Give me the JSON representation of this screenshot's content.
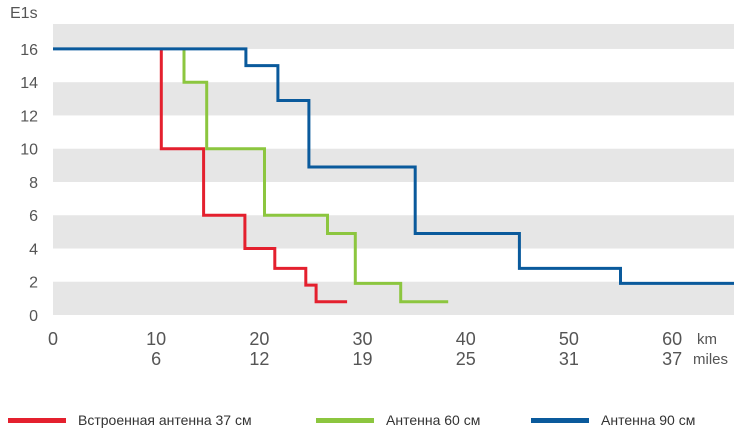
{
  "chart_data": {
    "type": "line",
    "step": true,
    "ylabel": "E1s",
    "ylim": [
      0,
      17.5
    ],
    "yticks": [
      0,
      2,
      4,
      6,
      8,
      10,
      12,
      14,
      16
    ],
    "xlim": [
      0,
      66
    ],
    "xticks": [
      {
        "km": 0,
        "km_label": "0",
        "miles_label": ""
      },
      {
        "km": 10,
        "km_label": "10",
        "miles_label": "6"
      },
      {
        "km": 20,
        "km_label": "20",
        "miles_label": "12"
      },
      {
        "km": 30,
        "km_label": "30",
        "miles_label": "19"
      },
      {
        "km": 40,
        "km_label": "40",
        "miles_label": "25"
      },
      {
        "km": 50,
        "km_label": "50",
        "miles_label": "31"
      },
      {
        "km": 60,
        "km_label": "60",
        "miles_label": "37"
      }
    ],
    "x_unit_primary": "km",
    "x_unit_secondary": "miles",
    "grid": "horizontal alternating bands",
    "legend_position": "bottom",
    "series": [
      {
        "name": "Встроенная антенна 37 см",
        "color": "#e4202e",
        "points": [
          [
            10.5,
            16
          ],
          [
            10.5,
            10
          ],
          [
            14.6,
            10
          ],
          [
            14.6,
            6
          ],
          [
            18.6,
            6
          ],
          [
            18.6,
            4
          ],
          [
            21.5,
            4
          ],
          [
            21.5,
            2.8
          ],
          [
            24.5,
            2.8
          ],
          [
            24.5,
            1.8
          ],
          [
            25.5,
            1.8
          ],
          [
            25.5,
            0.8
          ],
          [
            28.5,
            0.8
          ]
        ]
      },
      {
        "name": "Антенна 60 см",
        "color": "#8cc63f",
        "points": [
          [
            12.7,
            16
          ],
          [
            12.7,
            14
          ],
          [
            14.9,
            14
          ],
          [
            14.9,
            10
          ],
          [
            20.5,
            10
          ],
          [
            20.5,
            6
          ],
          [
            26.6,
            6
          ],
          [
            26.6,
            4.9
          ],
          [
            29.3,
            4.9
          ],
          [
            29.3,
            1.9
          ],
          [
            33.7,
            1.9
          ],
          [
            33.7,
            0.8
          ],
          [
            38.3,
            0.8
          ]
        ]
      },
      {
        "name": "Антенна 90 см",
        "color": "#0a5a9c",
        "points": [
          [
            0,
            16
          ],
          [
            18.7,
            16
          ],
          [
            18.7,
            15
          ],
          [
            21.8,
            15
          ],
          [
            21.8,
            12.9
          ],
          [
            24.8,
            12.9
          ],
          [
            24.8,
            8.9
          ],
          [
            35.1,
            8.9
          ],
          [
            35.1,
            4.9
          ],
          [
            45.2,
            4.9
          ],
          [
            45.2,
            2.8
          ],
          [
            55.0,
            2.8
          ],
          [
            55.0,
            1.9
          ],
          [
            66,
            1.9
          ]
        ]
      }
    ]
  },
  "colors": {
    "band": "#e6e6e6",
    "axis_text": "#555555"
  }
}
